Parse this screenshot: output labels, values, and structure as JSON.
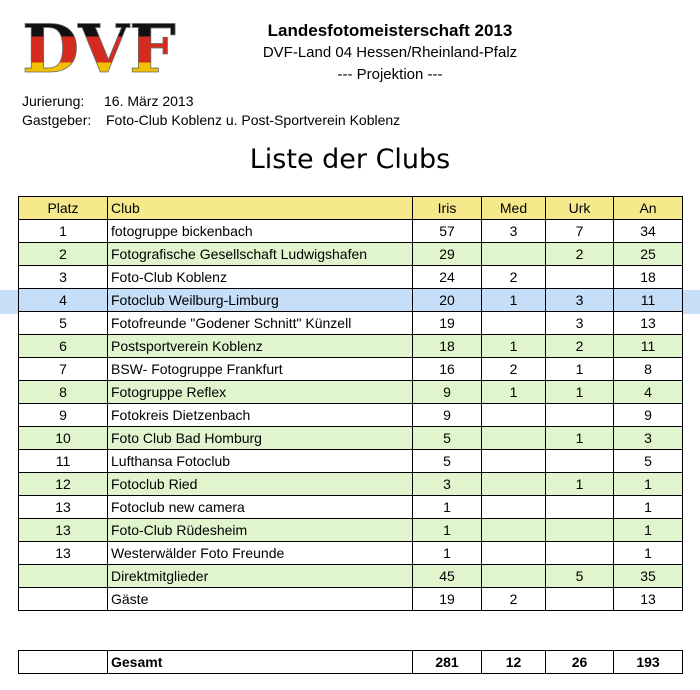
{
  "logo": {
    "text": "DVF"
  },
  "header": {
    "title": "Landesfotomeisterschaft 2013",
    "subtitle": "DVF-Land 04 Hessen/Rheinland-Pfalz",
    "category": "--- Projektion ---"
  },
  "meta": {
    "jury_label": "Jurierung:",
    "jury_value": "16. März 2013",
    "host_label": "Gastgeber:",
    "host_value": "Foto-Club Koblenz  u. Post-Sportverein Koblenz"
  },
  "page_title": "Liste der Clubs",
  "table": {
    "headers": [
      "Platz",
      "Club",
      "Iris",
      "Med",
      "Urk",
      "An"
    ],
    "rows": [
      {
        "platz": "1",
        "club": "fotogruppe bickenbach",
        "iris": "57",
        "med": "3",
        "urk": "7",
        "an": "34",
        "style": "w"
      },
      {
        "platz": "2",
        "club": "Fotografische Gesellschaft Ludwigshafen",
        "iris": "29",
        "med": "",
        "urk": "2",
        "an": "25",
        "style": "g"
      },
      {
        "platz": "3",
        "club": "Foto-Club Koblenz",
        "iris": "24",
        "med": "2",
        "urk": "",
        "an": "18",
        "style": "w"
      },
      {
        "platz": "4",
        "club": "Fotoclub Weilburg-Limburg",
        "iris": "20",
        "med": "1",
        "urk": "3",
        "an": "11",
        "style": "b"
      },
      {
        "platz": "5",
        "club": "Fotofreunde \"Godener Schnitt\" Künzell",
        "iris": "19",
        "med": "",
        "urk": "3",
        "an": "13",
        "style": "w"
      },
      {
        "platz": "6",
        "club": "Postsportverein Koblenz",
        "iris": "18",
        "med": "1",
        "urk": "2",
        "an": "11",
        "style": "g"
      },
      {
        "platz": "7",
        "club": "BSW- Fotogruppe Frankfurt",
        "iris": "16",
        "med": "2",
        "urk": "1",
        "an": "8",
        "style": "w"
      },
      {
        "platz": "8",
        "club": "Fotogruppe Reflex",
        "iris": "9",
        "med": "1",
        "urk": "1",
        "an": "4",
        "style": "g"
      },
      {
        "platz": "9",
        "club": "Fotokreis Dietzenbach",
        "iris": "9",
        "med": "",
        "urk": "",
        "an": "9",
        "style": "w"
      },
      {
        "platz": "10",
        "club": "Foto Club Bad Homburg",
        "iris": "5",
        "med": "",
        "urk": "1",
        "an": "3",
        "style": "g"
      },
      {
        "platz": "11",
        "club": "Lufthansa Fotoclub",
        "iris": "5",
        "med": "",
        "urk": "",
        "an": "5",
        "style": "w"
      },
      {
        "platz": "12",
        "club": "Fotoclub Ried",
        "iris": "3",
        "med": "",
        "urk": "1",
        "an": "1",
        "style": "g"
      },
      {
        "platz": "13",
        "club": "Fotoclub new camera",
        "iris": "1",
        "med": "",
        "urk": "",
        "an": "1",
        "style": "w"
      },
      {
        "platz": "13",
        "club": "Foto-Club Rüdesheim",
        "iris": "1",
        "med": "",
        "urk": "",
        "an": "1",
        "style": "g"
      },
      {
        "platz": "13",
        "club": "Westerwälder Foto Freunde",
        "iris": "1",
        "med": "",
        "urk": "",
        "an": "1",
        "style": "w"
      },
      {
        "platz": "",
        "club": "Direktmitglieder",
        "iris": "45",
        "med": "",
        "urk": "5",
        "an": "35",
        "style": "g"
      },
      {
        "platz": "",
        "club": "Gäste",
        "iris": "19",
        "med": "2",
        "urk": "",
        "an": "13",
        "style": "w"
      }
    ]
  },
  "total": {
    "label": "Gesamt",
    "iris": "281",
    "med": "12",
    "urk": "26",
    "an": "193"
  },
  "colors": {
    "header_bg": "#f5e98b",
    "green_row": "#e0f5cd",
    "blue_row": "#c6def7",
    "logo_black": "#111111",
    "logo_red": "#d52b1e",
    "logo_gold": "#f2c200"
  }
}
